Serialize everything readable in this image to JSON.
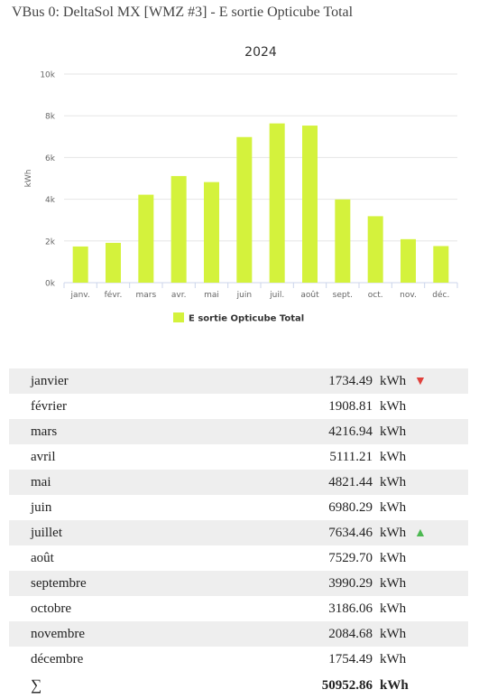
{
  "header": {
    "title": "VBus 0: DeltaSol MX [WMZ #3] - E sortie Opticube Total"
  },
  "chart_data": {
    "type": "bar",
    "title": "2024",
    "ylabel": "kWh",
    "xlabel": "",
    "ylim": [
      0,
      10000
    ],
    "yticks": [
      0,
      2000,
      4000,
      6000,
      8000,
      10000
    ],
    "ytick_labels": [
      "0k",
      "2k",
      "4k",
      "6k",
      "8k",
      "10k"
    ],
    "categories": [
      "janv.",
      "févr.",
      "mars",
      "avr.",
      "mai",
      "juin",
      "juil.",
      "août",
      "sept.",
      "oct.",
      "nov.",
      "déc."
    ],
    "series": [
      {
        "name": "E sortie Opticube Total",
        "color": "#d4f23c",
        "values": [
          1734.49,
          1908.81,
          4216.94,
          5111.21,
          4821.44,
          6980.29,
          7634.46,
          7529.7,
          3990.29,
          3186.06,
          2084.68,
          1754.49
        ]
      }
    ],
    "grid": true,
    "legend": "bottom-center"
  },
  "table": {
    "rows": [
      {
        "month": "janvier",
        "value": "1734.49",
        "unit": "kWh",
        "trend": "min"
      },
      {
        "month": "février",
        "value": "1908.81",
        "unit": "kWh",
        "trend": ""
      },
      {
        "month": "mars",
        "value": "4216.94",
        "unit": "kWh",
        "trend": ""
      },
      {
        "month": "avril",
        "value": "5111.21",
        "unit": "kWh",
        "trend": ""
      },
      {
        "month": "mai",
        "value": "4821.44",
        "unit": "kWh",
        "trend": ""
      },
      {
        "month": "juin",
        "value": "6980.29",
        "unit": "kWh",
        "trend": ""
      },
      {
        "month": "juillet",
        "value": "7634.46",
        "unit": "kWh",
        "trend": "max"
      },
      {
        "month": "août",
        "value": "7529.70",
        "unit": "kWh",
        "trend": ""
      },
      {
        "month": "septembre",
        "value": "3990.29",
        "unit": "kWh",
        "trend": ""
      },
      {
        "month": "octobre",
        "value": "3186.06",
        "unit": "kWh",
        "trend": ""
      },
      {
        "month": "novembre",
        "value": "2084.68",
        "unit": "kWh",
        "trend": ""
      },
      {
        "month": "décembre",
        "value": "1754.49",
        "unit": "kWh",
        "trend": ""
      }
    ],
    "total": {
      "symbol": "∑",
      "value": "50952.86",
      "unit": "kWh"
    }
  },
  "icons": {
    "min": "triangle-down-icon",
    "max": "triangle-up-icon"
  },
  "colors": {
    "down": "#e0413c",
    "up": "#4cb851",
    "bar": "#d4f23c"
  }
}
